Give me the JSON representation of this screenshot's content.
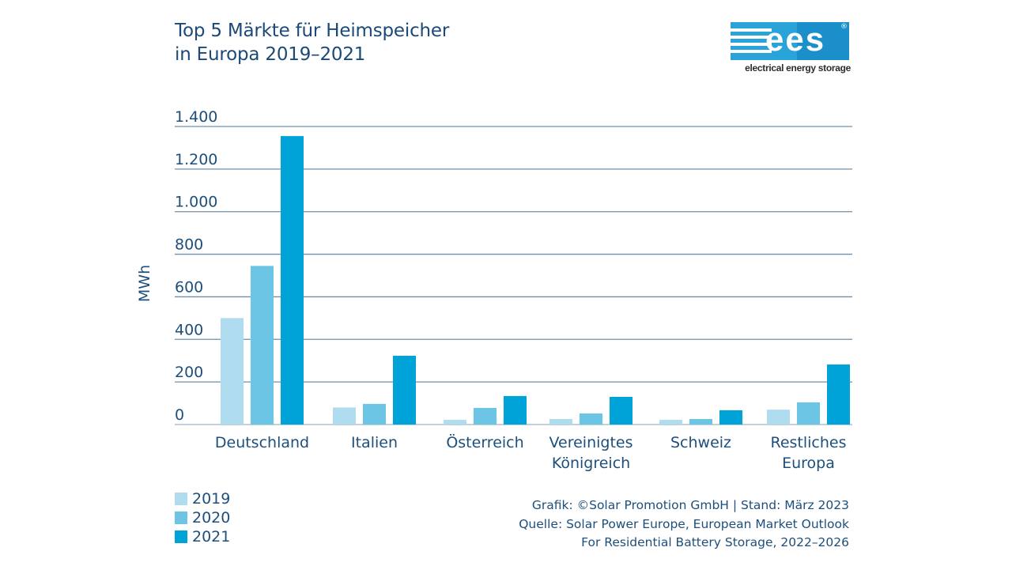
{
  "title": {
    "line1": "Top 5 Märkte für Heimspeicher",
    "line2": "in Europa 2019–2021"
  },
  "logo": {
    "mark": "ees",
    "registered": "®",
    "tagline": "electrical energy storage"
  },
  "colors": {
    "2019": "#b0dcef",
    "2020": "#6cc5e5",
    "2021": "#00a3d8",
    "grid": "#6f8fa8",
    "text": "#1d4f7c"
  },
  "chart_data": {
    "type": "bar",
    "title": "Top 5 Märkte für Heimspeicher in Europa 2019–2021",
    "xlabel": "",
    "ylabel": "MWh",
    "ylim": [
      0,
      1400
    ],
    "yticks": [
      0,
      200,
      400,
      600,
      800,
      1000,
      1200,
      1400
    ],
    "ytick_labels": [
      "0",
      "200",
      "400",
      "600",
      "800",
      "1.000",
      "1.200",
      "1.400"
    ],
    "grid": true,
    "legend_position": "bottom-left",
    "categories": [
      [
        "Deutschland"
      ],
      [
        "Italien"
      ],
      [
        "Österreich"
      ],
      [
        "Vereinigtes",
        "Königreich"
      ],
      [
        "Schweiz"
      ],
      [
        "Restliches",
        "Europa"
      ]
    ],
    "series": [
      {
        "name": "2019",
        "values": [
          500,
          80,
          22,
          26,
          22,
          70
        ]
      },
      {
        "name": "2020",
        "values": [
          745,
          97,
          78,
          52,
          26,
          104
        ]
      },
      {
        "name": "2021",
        "values": [
          1355,
          323,
          134,
          130,
          67,
          282
        ]
      }
    ]
  },
  "legend": {
    "items": [
      "2019",
      "2020",
      "2021"
    ]
  },
  "source": {
    "line1": "Grafik: ©Solar Promotion GmbH | Stand: März 2023",
    "line2": "Quelle: Solar Power Europe, European Market Outlook",
    "line3": "For Residential Battery Storage, 2022–2026"
  }
}
